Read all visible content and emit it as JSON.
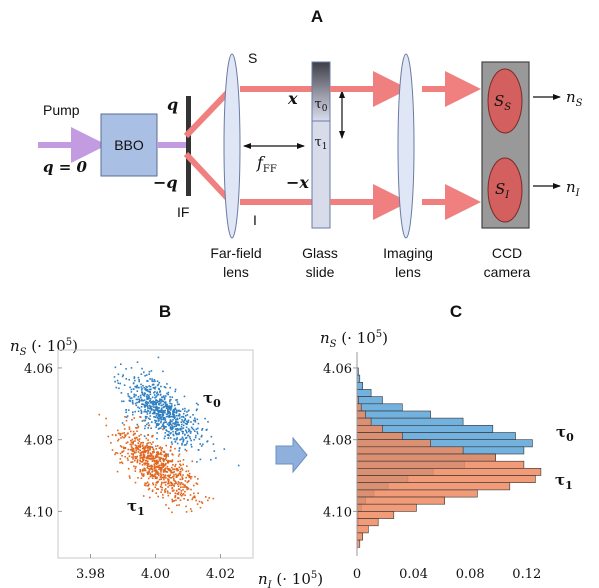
{
  "panel_a": {
    "label": "A",
    "pump": "Pump",
    "q_zero": "q = 0",
    "bbo": "BBO",
    "q_plus": "q",
    "q_minus": "−q",
    "if_filter": "IF",
    "signal": "S",
    "idler": "I",
    "x_plus": "x",
    "x_minus": "−x",
    "tau0": "τ0",
    "tau1": "τ1",
    "f_ff": "fFF",
    "far_field_lens": [
      "Far-field",
      "lens"
    ],
    "glass_slide": [
      "Glass",
      "slide"
    ],
    "imaging_lens": [
      "Imaging",
      "lens"
    ],
    "ccd_camera": [
      "CCD",
      "camera"
    ],
    "s_s": "SS",
    "s_i": "SI",
    "n_s": "nS",
    "n_i": "nI"
  },
  "chart_data": [
    {
      "panel": "B",
      "type": "scatter",
      "ylabel": "nS (· 10^5)",
      "xlabel": "nI (· 10^5)",
      "xlim": [
        3.97,
        4.03
      ],
      "ylim": [
        4.055,
        4.113
      ],
      "y_inverted": true,
      "xticks": [
        "3.98",
        "4.00",
        "4.02"
      ],
      "yticks": [
        "4.06",
        "4.08",
        "4.10"
      ],
      "series": [
        {
          "name": "τ0",
          "color": "#2f7fc1",
          "center": [
            4.002,
            4.072
          ],
          "spread": [
            0.006,
            0.005
          ]
        },
        {
          "name": "τ1",
          "color": "#e0661f",
          "center": [
            4.0,
            4.087
          ],
          "spread": [
            0.006,
            0.005
          ]
        }
      ]
    },
    {
      "panel": "C",
      "type": "bar",
      "orientation": "horizontal",
      "ylabel": "nS (· 10^5)",
      "xticks": [
        "0",
        "0.04",
        "0.08",
        "0.12"
      ],
      "yticks": [
        "4.06",
        "4.08",
        "4.10"
      ],
      "xlim": [
        0,
        0.135
      ],
      "ylim": [
        4.055,
        4.113
      ],
      "y_inverted": true,
      "series": [
        {
          "name": "τ0",
          "color": "#5ba4d8",
          "bin_centers": [
            4.061,
            4.063,
            4.065,
            4.067,
            4.069,
            4.071,
            4.073,
            4.075,
            4.077,
            4.079,
            4.081,
            4.083,
            4.085,
            4.087,
            4.089,
            4.091,
            4.093,
            4.095,
            4.097,
            4.099,
            4.101,
            4.103
          ],
          "values": [
            0.001,
            0.002,
            0.004,
            0.01,
            0.018,
            0.032,
            0.052,
            0.075,
            0.096,
            0.112,
            0.124,
            0.118,
            0.098,
            0.076,
            0.054,
            0.036,
            0.022,
            0.012,
            0.006,
            0.003,
            0.001,
            0.001
          ]
        },
        {
          "name": "τ1",
          "color": "#ee8a60",
          "bin_centers": [
            4.069,
            4.071,
            4.073,
            4.075,
            4.077,
            4.079,
            4.081,
            4.083,
            4.085,
            4.087,
            4.089,
            4.091,
            4.093,
            4.095,
            4.097,
            4.099,
            4.101,
            4.103,
            4.105,
            4.107,
            4.109
          ],
          "values": [
            0.001,
            0.003,
            0.006,
            0.01,
            0.018,
            0.032,
            0.052,
            0.075,
            0.098,
            0.118,
            0.13,
            0.126,
            0.108,
            0.085,
            0.062,
            0.042,
            0.026,
            0.015,
            0.008,
            0.004,
            0.002
          ]
        }
      ],
      "arrow_color": "#8fb0dc"
    }
  ],
  "colors": {
    "beam": "#f08080",
    "pump": "#c39be0",
    "bbo_fill": "#a9bfe4",
    "lens_fill": "#dfe6f5",
    "camera_fill": "#999999",
    "spot_fill": "#d35f5f"
  }
}
